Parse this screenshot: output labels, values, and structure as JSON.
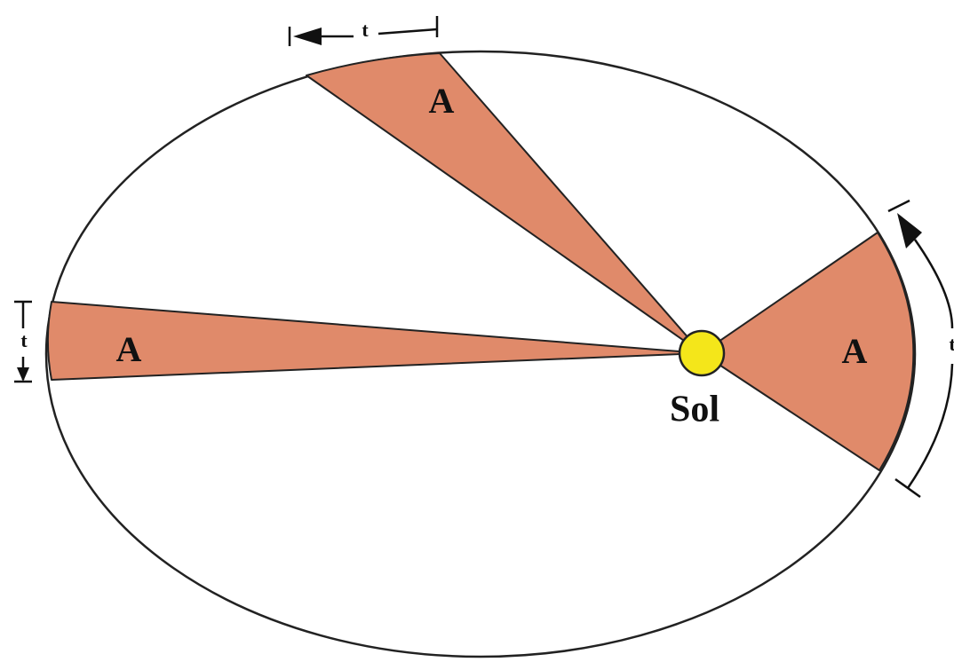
{
  "wedges": [
    {
      "label": "A",
      "interval": "t"
    },
    {
      "label": "A",
      "interval": "t"
    },
    {
      "label": "A",
      "interval": "t"
    }
  ],
  "sun": {
    "label": "Sol"
  }
}
